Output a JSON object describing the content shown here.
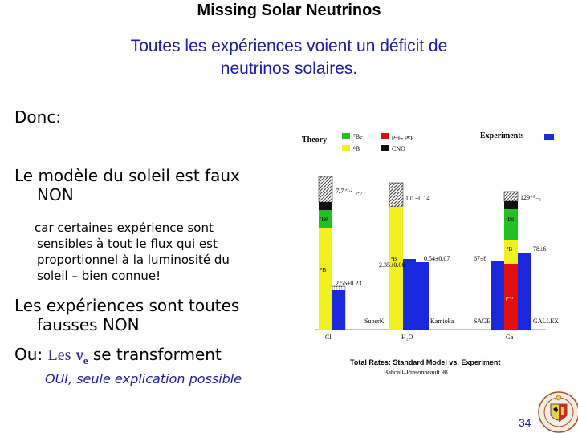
{
  "slide": {
    "title": "Missing Solar Neutrinos",
    "subtitle_line1": "Toutes les expériences voient un déficit de",
    "subtitle_line2": "neutrinos solaires.",
    "donc": "Donc:",
    "point1_line1": "Le modèle du soleil est faux",
    "point1_line2": "NON",
    "detail1": "car certaines expérience sont",
    "detail2": "sensibles à tout le flux qui est",
    "detail3": "proportionnel à la luminosité du",
    "detail4": "soleil – bien connue!",
    "point2_line1": "Les expériences sont toutes",
    "point2_line2": "fausses NON",
    "point3_prefix": "Ou:",
    "point3_les": "Les",
    "point3_nu": "ν",
    "point3_e": "e",
    "point3_suffix": "se transforment",
    "conclusion": "OUI, seule explication possible",
    "page_number": "34"
  },
  "figure": {
    "legend": {
      "theory": "Theory",
      "be7": "⁷Be",
      "b8": "⁸B",
      "pp": "p–p, pep",
      "cno": "CNO",
      "experiments": "Experiments"
    },
    "colors": {
      "be7": "#22c022",
      "b8": "#f0f020",
      "pp": "#e01010",
      "cno": "#111111",
      "experiment": "#1a28e0"
    },
    "theory_values": [
      "7.7⁺¹·²₋₁.₀",
      "1.0 ±0.14",
      "129⁺⁸₋₆"
    ],
    "experiment_values": [
      "2.56±0.23",
      "2.35±0.06",
      "0.54±0.07",
      "67±8",
      "78±6"
    ],
    "stack_labels": {
      "ci_be": "⁷Be",
      "ci_b": "⁸B",
      "h2o_b": "⁸B",
      "ga_be": "⁷Be",
      "ga_b": "⁸B",
      "ga_pp": "p–p"
    },
    "bar_labels": [
      "SuperK",
      "Kamioka",
      "SAGE",
      "GALLEX"
    ],
    "axis_labels": [
      "Cl",
      "H₂O",
      "Ga"
    ],
    "caption1": "Total Rates: Standard Model vs. Experiment",
    "caption2": "Bahcall–Pinsonneault 98"
  }
}
